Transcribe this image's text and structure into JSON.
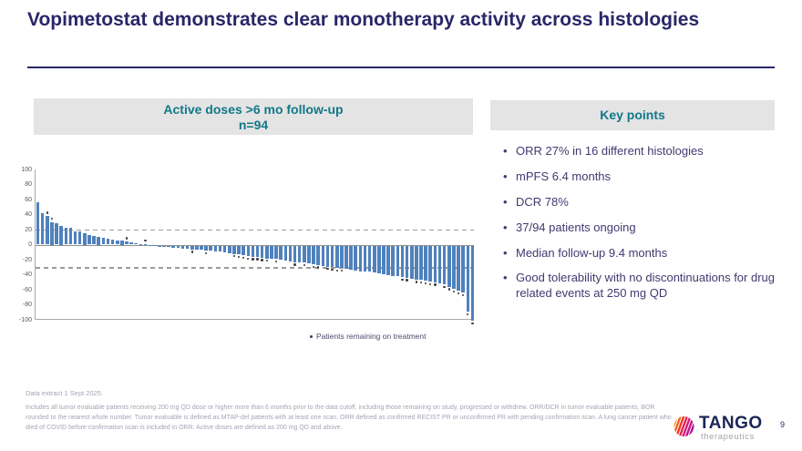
{
  "slide": {
    "title": "Vopimetostat demonstrates clear monotherapy activity across histologies",
    "page_number": "9"
  },
  "chart_panel": {
    "header_line1": "Active doses  >6 mo follow-up",
    "header_line2": "n=94"
  },
  "key_points": {
    "header": "Key points",
    "bullets": [
      "ORR 27% in 16 different histologies",
      "mPFS 6.4 months",
      "DCR 78%",
      "37/94 patients ongoing",
      "Median follow-up 9.4 months",
      "Good tolerability with no discontinuations for drug related events at 250 mg QD"
    ]
  },
  "legend": {
    "label": "Patients remaining on treatment"
  },
  "footnotes": {
    "line1": "Data extract 1 Sept 2025.",
    "line2": "Includes all tumor evaluable patients receiving 200 mg QD dose or higher more than 6 months prior to the data cutoff, including those remaining on study, progressed or withdrew. ORR/DCR in tumor evaluable patients, BOR rounded to the nearest whole number. Tumor evaluable is defined as MTAP-del patients with at least one scan. ORR defined as  confirmed RECIST PR or unconfirmed PR with pending confirmation scan. A lung cancer patient who died of COVID before confirmation scan is included in ORR. Active doses are defined as 200 mg QD and above."
  },
  "logo": {
    "name": "TANGO",
    "sub": "therapeutics"
  },
  "colors": {
    "title_navy": "#2a2668",
    "accent_teal": "#117888",
    "panel_gray": "#e4e4e4",
    "bar_blue": "#4f81bd",
    "bullet_indigo": "#3f3a70",
    "footnote_gray": "#a2a6b5"
  },
  "chart_data": {
    "type": "bar",
    "title": "Active doses >6 mo follow-up, n=94 (waterfall of best tumor change %)",
    "xlabel": "",
    "ylabel": "",
    "ylim": [
      -100,
      100
    ],
    "yticks": [
      100,
      80,
      60,
      40,
      20,
      0,
      -20,
      -40,
      -60,
      -80,
      -100
    ],
    "reference_lines": [
      20,
      -30
    ],
    "grid": false,
    "legend_entries": [
      "Patients remaining on treatment"
    ],
    "n_patients": 94,
    "values": [
      56,
      42,
      38,
      30,
      29,
      25,
      23,
      22,
      18,
      17,
      15,
      13,
      12,
      10,
      9,
      8,
      7,
      6,
      5,
      4,
      3,
      2,
      1,
      1,
      0,
      0,
      -1,
      -2,
      -2,
      -3,
      -3,
      -4,
      -4,
      -5,
      -5,
      -6,
      -7,
      -7,
      -8,
      -8,
      -9,
      -10,
      -11,
      -12,
      -13,
      -14,
      -15,
      -15,
      -16,
      -17,
      -18,
      -18,
      -19,
      -20,
      -21,
      -22,
      -22,
      -23,
      -24,
      -25,
      -26,
      -27,
      -28,
      -29,
      -30,
      -30,
      -31,
      -32,
      -33,
      -34,
      -35,
      -35,
      -36,
      -37,
      -38,
      -39,
      -40,
      -41,
      -42,
      -43,
      -44,
      -45,
      -46,
      -47,
      -48,
      -49,
      -50,
      -52,
      -55,
      -58,
      -60,
      -63,
      -88,
      -100
    ],
    "ongoing_marker_indices": [
      2,
      3,
      19,
      23,
      33,
      36,
      42,
      43,
      44,
      45,
      46,
      47,
      48,
      49,
      51,
      55,
      57,
      59,
      60,
      62,
      63,
      64,
      65,
      78,
      79,
      81,
      82,
      83,
      84,
      85,
      87,
      88,
      89,
      90,
      91,
      92,
      93
    ]
  }
}
